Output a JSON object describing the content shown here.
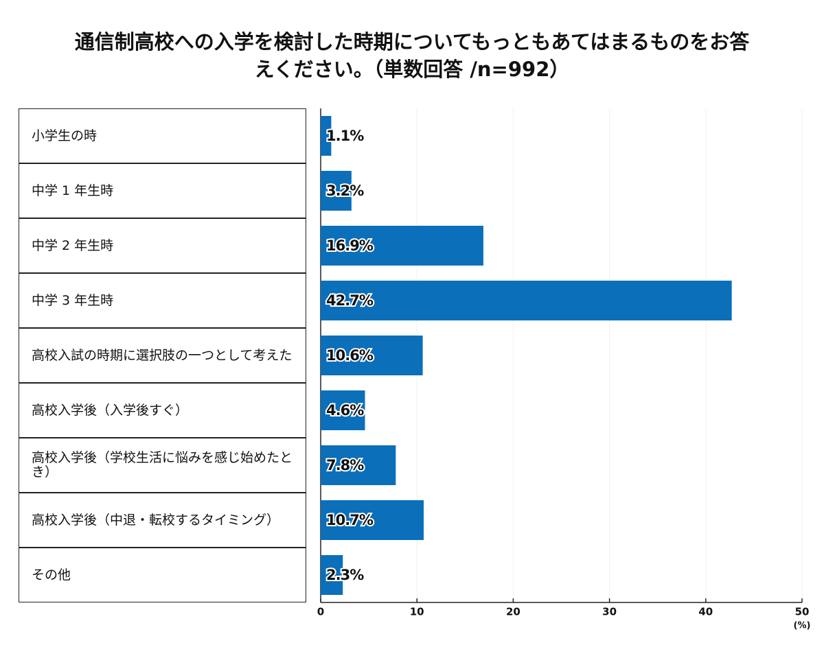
{
  "chart_data": {
    "type": "barh",
    "title": [
      "通信制高校への入学を検討した時期についてもっともあてはまるものをお答",
      "えください。（単数回答 /n=992）"
    ],
    "categories": [
      "小学生の時",
      "中学 1 年生時",
      "中学 2 年生時",
      "中学 3 年生時",
      "高校入試の時期に選択肢の一つとして考えた",
      "高校入学後（入学後すぐ）",
      "高校入学後（学校生活に悩みを感じ始めたとき）",
      "高校入学後（中退・転校するタイミング）",
      "その他"
    ],
    "values": [
      1.1,
      3.2,
      16.9,
      42.7,
      10.6,
      4.6,
      7.8,
      10.7,
      2.3
    ],
    "value_labels": [
      "1.1%",
      "3.2%",
      "16.9%",
      "42.7%",
      "10.6%",
      "4.6%",
      "7.8%",
      "10.7%",
      "2.3%"
    ],
    "color": "#0b6fba",
    "xlim": [
      0,
      50
    ],
    "xticks": [
      0,
      10,
      20,
      30,
      40,
      50
    ],
    "x_unit": "(%)",
    "grid": true
  }
}
